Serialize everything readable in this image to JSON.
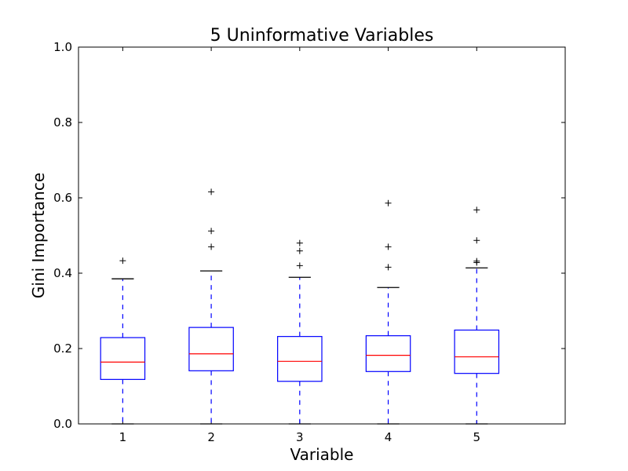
{
  "chart_data": {
    "type": "boxplot",
    "title": "5 Uninformative Variables",
    "xlabel": "Variable",
    "ylabel": "Gini Importance",
    "ylim": [
      0.0,
      1.0
    ],
    "yticks": [
      "0.0",
      "0.2",
      "0.4",
      "0.6",
      "0.8",
      "1.0"
    ],
    "categories": [
      "1",
      "2",
      "3",
      "4",
      "5"
    ],
    "boxes": [
      {
        "whisker_low": 0.0,
        "q1": 0.118,
        "median": 0.164,
        "q3": 0.229,
        "whisker_high": 0.385,
        "outliers": [
          0.433
        ]
      },
      {
        "whisker_low": 0.0,
        "q1": 0.141,
        "median": 0.186,
        "q3": 0.256,
        "whisker_high": 0.406,
        "outliers": [
          0.47,
          0.512,
          0.616
        ]
      },
      {
        "whisker_low": 0.0,
        "q1": 0.113,
        "median": 0.166,
        "q3": 0.232,
        "whisker_high": 0.389,
        "outliers": [
          0.42,
          0.459,
          0.48
        ]
      },
      {
        "whisker_low": 0.0,
        "q1": 0.139,
        "median": 0.182,
        "q3": 0.234,
        "whisker_high": 0.362,
        "outliers": [
          0.416,
          0.47,
          0.586
        ]
      },
      {
        "whisker_low": 0.0,
        "q1": 0.134,
        "median": 0.178,
        "q3": 0.249,
        "whisker_high": 0.414,
        "outliers": [
          0.428,
          0.432,
          0.487,
          0.568
        ]
      }
    ],
    "colors": {
      "box": "#0000ff",
      "median": "#ff0000",
      "cap": "#000000",
      "outlier": "#000000"
    },
    "grid": false,
    "legend": "none"
  }
}
